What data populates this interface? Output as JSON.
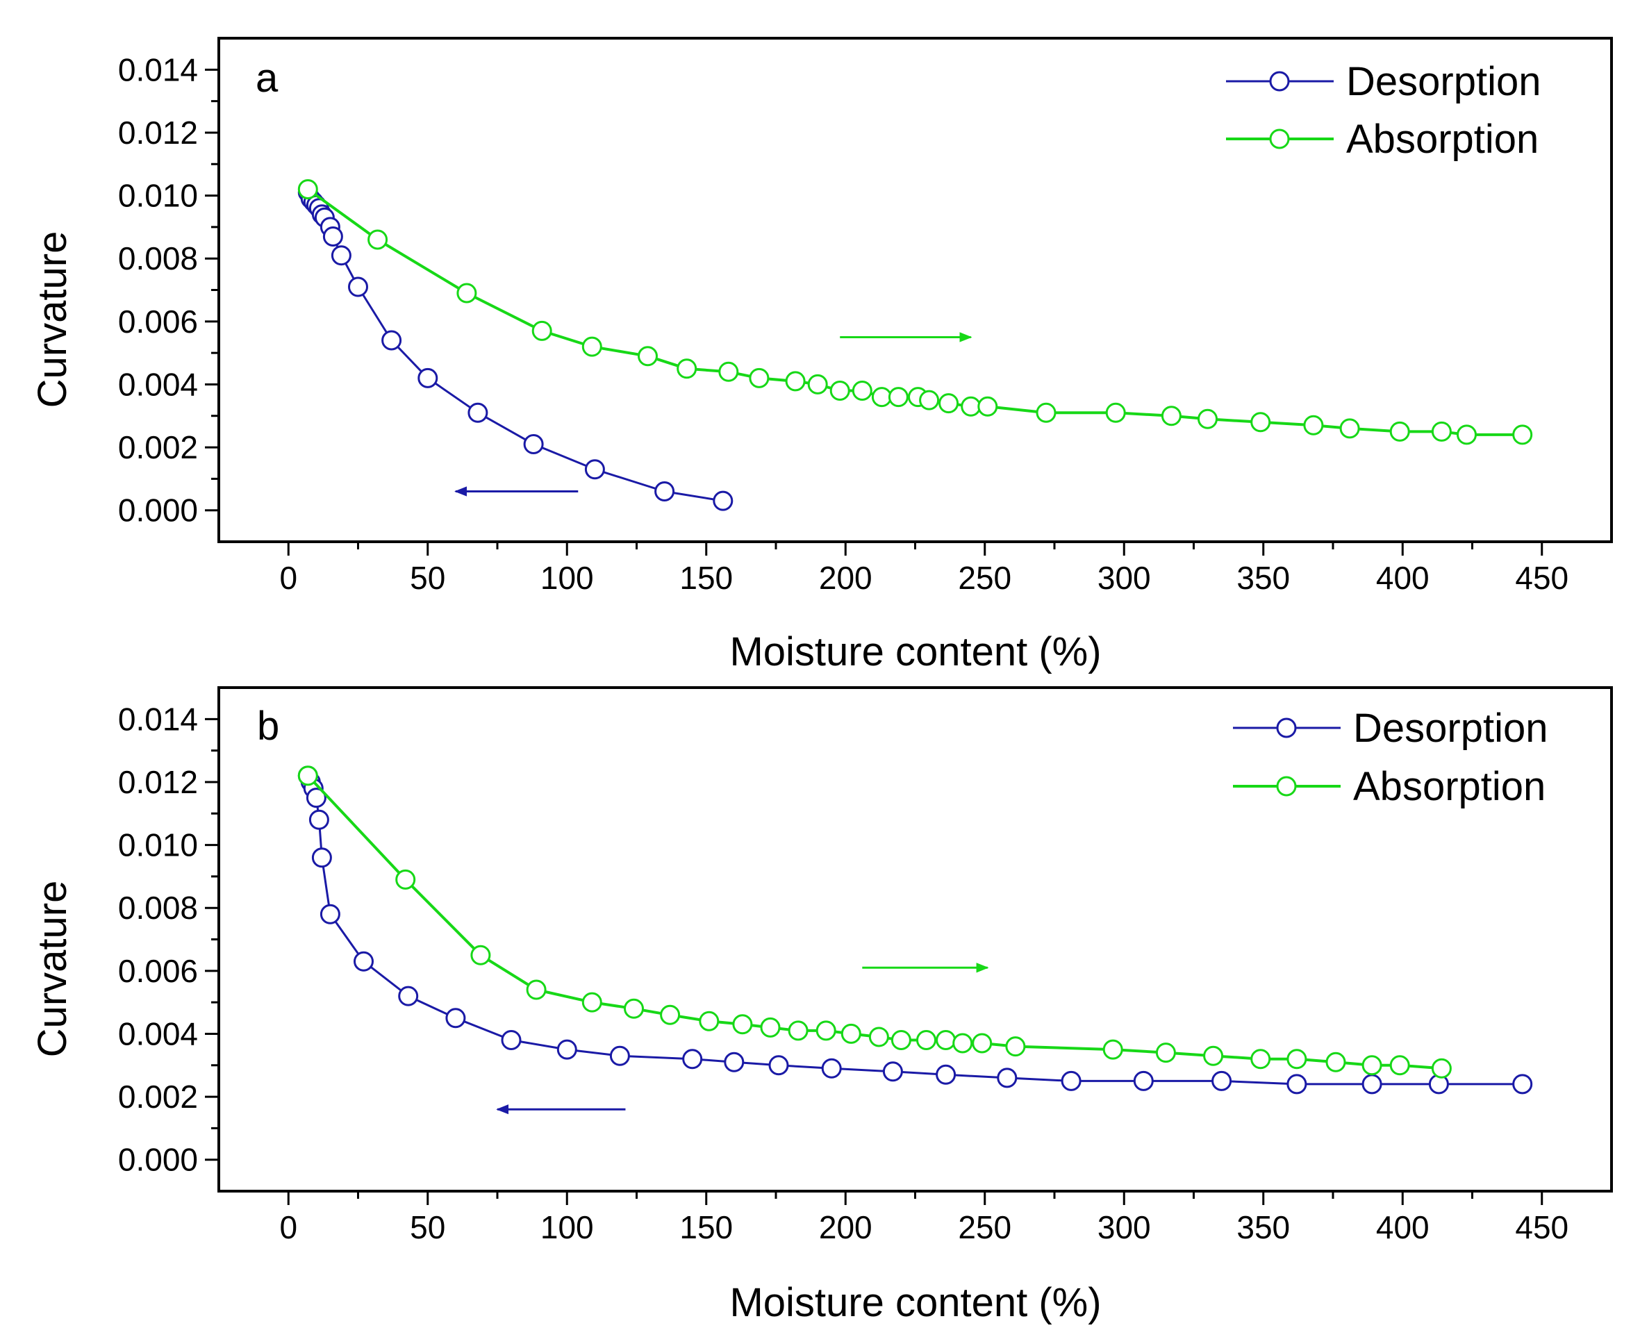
{
  "chart_data": [
    {
      "type": "line",
      "panel_label": "a",
      "xlabel": "Moisture content (%)",
      "ylabel": "Curvature",
      "xlim": [
        -25,
        475
      ],
      "ylim": [
        -0.001,
        0.015
      ],
      "xticks": [
        0,
        50,
        100,
        150,
        200,
        250,
        300,
        350,
        400,
        450
      ],
      "yticks": [
        0.0,
        0.002,
        0.004,
        0.006,
        0.008,
        0.01,
        0.012,
        0.014
      ],
      "xtick_labels": [
        "0",
        "50",
        "100",
        "150",
        "200",
        "250",
        "300",
        "350",
        "400",
        "450"
      ],
      "ytick_labels": [
        "0.000",
        "0.002",
        "0.004",
        "0.006",
        "0.008",
        "0.010",
        "0.012",
        "0.014"
      ],
      "legend_position": "top-right",
      "series": [
        {
          "name": "Desorption",
          "color": "#1a1aa6",
          "x": [
            7,
            8,
            9,
            10,
            11,
            12,
            13,
            15,
            16,
            19,
            25,
            37,
            50,
            68,
            88,
            110,
            135,
            156
          ],
          "y": [
            0.0101,
            0.0099,
            0.0098,
            0.0097,
            0.0096,
            0.0094,
            0.0093,
            0.009,
            0.0087,
            0.0081,
            0.0071,
            0.0054,
            0.0042,
            0.0031,
            0.0021,
            0.0013,
            0.0006,
            0.0003
          ]
        },
        {
          "name": "Absorption",
          "color": "#17d817",
          "x": [
            7,
            32,
            64,
            91,
            109,
            129,
            143,
            158,
            169,
            182,
            190,
            198,
            206,
            213,
            219,
            226,
            230,
            237,
            245,
            251,
            272,
            297,
            317,
            330,
            349,
            368,
            381,
            399,
            414,
            423,
            443
          ],
          "y": [
            0.0102,
            0.0086,
            0.0069,
            0.0057,
            0.0052,
            0.0049,
            0.0045,
            0.0044,
            0.0042,
            0.0041,
            0.004,
            0.0038,
            0.0038,
            0.0036,
            0.0036,
            0.0036,
            0.0035,
            0.0034,
            0.0033,
            0.0033,
            0.0031,
            0.0031,
            0.003,
            0.0029,
            0.0028,
            0.0027,
            0.0026,
            0.0025,
            0.0025,
            0.0024,
            0.0024
          ]
        }
      ],
      "arrows": [
        {
          "series": "Desorption",
          "direction": "left",
          "x_from": 104,
          "x_to": 60,
          "y": 0.0006
        },
        {
          "series": "Absorption",
          "direction": "right",
          "x_from": 198,
          "x_to": 245,
          "y": 0.0055
        }
      ]
    },
    {
      "type": "line",
      "panel_label": "b",
      "xlabel": "Moisture content (%)",
      "ylabel": "Curvature",
      "xlim": [
        -25,
        475
      ],
      "ylim": [
        -0.001,
        0.015
      ],
      "xticks": [
        0,
        50,
        100,
        150,
        200,
        250,
        300,
        350,
        400,
        450
      ],
      "yticks": [
        0.0,
        0.002,
        0.004,
        0.006,
        0.008,
        0.01,
        0.012,
        0.014
      ],
      "xtick_labels": [
        "0",
        "50",
        "100",
        "150",
        "200",
        "250",
        "300",
        "350",
        "400",
        "450"
      ],
      "ytick_labels": [
        "0.000",
        "0.002",
        "0.004",
        "0.006",
        "0.008",
        "0.010",
        "0.012",
        "0.014"
      ],
      "legend_position": "top-right",
      "series": [
        {
          "name": "Desorption",
          "color": "#1a1aa6",
          "x": [
            7,
            8,
            9,
            10,
            11,
            12,
            15,
            27,
            43,
            60,
            80,
            100,
            119,
            145,
            160,
            176,
            195,
            217,
            236,
            258,
            281,
            307,
            335,
            362,
            389,
            413,
            443
          ],
          "y": [
            0.0122,
            0.012,
            0.0118,
            0.0115,
            0.0108,
            0.0096,
            0.0078,
            0.0063,
            0.0052,
            0.0045,
            0.0038,
            0.0035,
            0.0033,
            0.0032,
            0.0031,
            0.003,
            0.0029,
            0.0028,
            0.0027,
            0.0026,
            0.0025,
            0.0025,
            0.0025,
            0.0024,
            0.0024,
            0.0024,
            0.0024
          ]
        },
        {
          "name": "Absorption",
          "color": "#17d817",
          "x": [
            7,
            42,
            69,
            89,
            109,
            124,
            137,
            151,
            163,
            173,
            183,
            193,
            202,
            212,
            220,
            229,
            236,
            242,
            249,
            261,
            296,
            315,
            332,
            349,
            362,
            376,
            389,
            399,
            414
          ],
          "y": [
            0.0122,
            0.0089,
            0.0065,
            0.0054,
            0.005,
            0.0048,
            0.0046,
            0.0044,
            0.0043,
            0.0042,
            0.0041,
            0.0041,
            0.004,
            0.0039,
            0.0038,
            0.0038,
            0.0038,
            0.0037,
            0.0037,
            0.0036,
            0.0035,
            0.0034,
            0.0033,
            0.0032,
            0.0032,
            0.0031,
            0.003,
            0.003,
            0.0029
          ]
        }
      ],
      "arrows": [
        {
          "series": "Desorption",
          "direction": "left",
          "x_from": 121,
          "x_to": 75,
          "y": 0.0016
        },
        {
          "series": "Absorption",
          "direction": "right",
          "x_from": 206,
          "x_to": 251,
          "y": 0.0061
        }
      ]
    }
  ]
}
